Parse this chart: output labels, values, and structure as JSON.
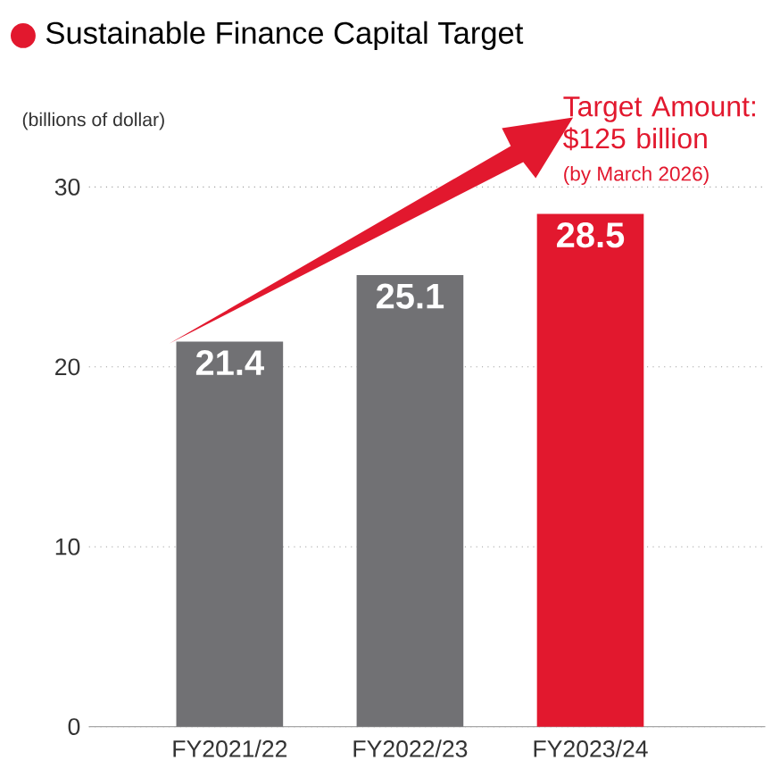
{
  "chart_data": {
    "type": "bar",
    "title": "Sustainable Finance Capital Target",
    "ylabel": "(billions of dollar)",
    "categories": [
      "FY2021/22",
      "FY2022/23",
      "FY2023/24"
    ],
    "values": [
      21.4,
      25.1,
      28.5
    ],
    "colors": [
      "#717174",
      "#717174",
      "#e2182e"
    ],
    "data_labels": true,
    "value_labels": [
      "21.4",
      "25.1",
      "28.5"
    ],
    "ylim": [
      0,
      30
    ],
    "yticks": [
      0,
      10,
      20,
      30
    ],
    "grid": "y",
    "annotations": [
      "Target Amount: $125 billion",
      "(by March 2026)"
    ]
  }
}
